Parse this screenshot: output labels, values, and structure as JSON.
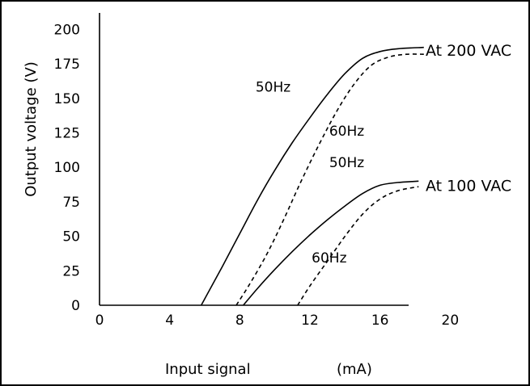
{
  "chart_data": {
    "type": "line",
    "title": "",
    "xlabel": "Input signal",
    "xunit": "(mA)",
    "ylabel": "Output voltage (V)",
    "xlim": [
      0,
      24
    ],
    "ylim": [
      0,
      212
    ],
    "x_ticks": [
      0,
      4,
      8,
      12,
      16,
      20
    ],
    "y_ticks": [
      0,
      25,
      50,
      75,
      100,
      125,
      150,
      175,
      200
    ],
    "grid": false,
    "groups": [
      {
        "label": "At 200 VAC",
        "anchor_x": 18.6,
        "anchor_y": 181
      },
      {
        "label": "At 100 VAC",
        "anchor_x": 18.6,
        "anchor_y": 83
      }
    ],
    "series": [
      {
        "name": "50Hz",
        "group": "At 200 VAC",
        "style": "solid",
        "label_at": [
          8.9,
          155
        ],
        "x": [
          5.8,
          7,
          8,
          9,
          10,
          11,
          12,
          13,
          14,
          15,
          16,
          17,
          18.5
        ],
        "y": [
          0,
          28,
          52,
          76,
          98,
          118,
          136,
          153,
          168,
          179,
          184,
          186,
          187
        ]
      },
      {
        "name": "60Hz",
        "group": "At 200 VAC",
        "style": "dashed",
        "label_at": [
          13.1,
          123
        ],
        "x": [
          7.8,
          8.5,
          9.5,
          10.5,
          11.5,
          12.5,
          13.5,
          14.5,
          15.5,
          16.5,
          17.5,
          18.5
        ],
        "y": [
          0,
          14,
          36,
          62,
          90,
          116,
          140,
          160,
          174,
          180,
          182,
          182
        ]
      },
      {
        "name": "50Hz",
        "group": "At 100 VAC",
        "style": "solid",
        "label_at": [
          13.1,
          100
        ],
        "x": [
          8.2,
          9,
          10,
          11,
          12,
          13,
          14,
          15,
          16,
          17,
          18.2
        ],
        "y": [
          0,
          12,
          26,
          39,
          51,
          62,
          72,
          81,
          87,
          89,
          90
        ]
      },
      {
        "name": "60Hz",
        "group": "At 100 VAC",
        "style": "dashed",
        "label_at": [
          12.1,
          31
        ],
        "x": [
          11.3,
          12,
          13,
          14,
          15,
          16,
          17,
          18.2
        ],
        "y": [
          0,
          14,
          32,
          50,
          66,
          77,
          83,
          86
        ]
      }
    ]
  }
}
